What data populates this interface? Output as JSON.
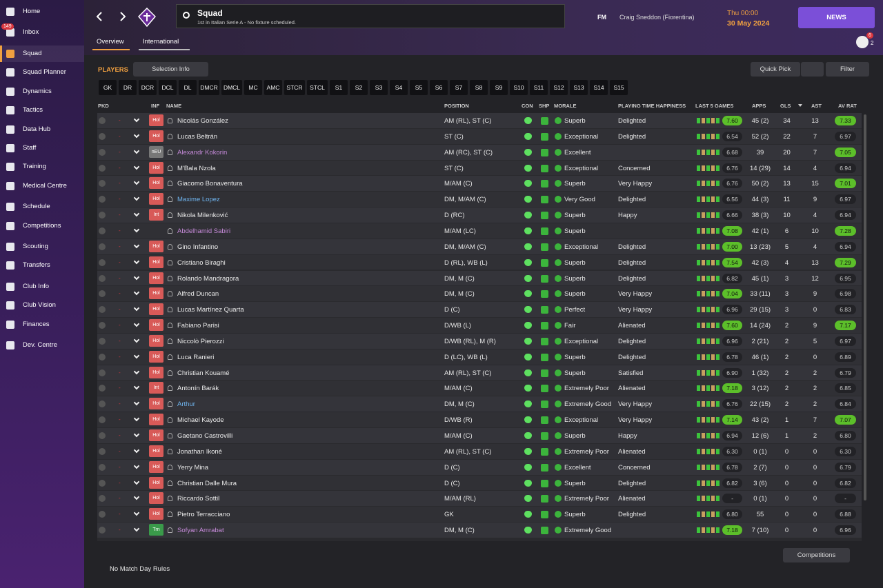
{
  "sidebar": {
    "items": [
      "Home",
      "Inbox",
      "Squad",
      "Squad Planner",
      "Dynamics",
      "Tactics",
      "Data Hub",
      "Staff",
      "Training",
      "Medical Centre",
      "Schedule",
      "Competitions",
      "Scouting",
      "Transfers",
      "Club Info",
      "Club Vision",
      "Finances",
      "Dev. Centre"
    ],
    "inbox_badge": "149"
  },
  "header": {
    "title": "Squad",
    "subtitle": "1st in Italian Serie A - No fixture scheduled.",
    "brand": "FM",
    "manager": "Craig Sneddon (Fiorentina)",
    "time": "Thu 00:00",
    "date": "30 May 2024",
    "news": "NEWS",
    "badge_a": "2",
    "badge_b": "6"
  },
  "tabs": [
    "Overview",
    "International"
  ],
  "toolbar": {
    "label": "PLAYERS",
    "selection": "Selection Info",
    "quick_pick": "Quick Pick",
    "filter": "Filter"
  },
  "positions": [
    "GK",
    "DR",
    "DCR",
    "DCL",
    "DL",
    "DMCR",
    "DMCL",
    "MC",
    "AMC",
    "STCR",
    "STCL",
    "S1",
    "S2",
    "S3",
    "S4",
    "S5",
    "S6",
    "S7",
    "S8",
    "S9",
    "S10",
    "S11",
    "S12",
    "S13",
    "S14",
    "S15"
  ],
  "table": {
    "columns": [
      "PKD",
      "INF",
      "NAME",
      "POSITION",
      "CON",
      "SHP",
      "MORALE",
      "PLAYING TIME HAPPINESS",
      "LAST 5 GAMES",
      "APPS",
      "GLS",
      "AST",
      "AV RAT"
    ],
    "rows": [
      {
        "pkd": "-",
        "inf": "Hol",
        "name": "Nicolás González",
        "position": "AM (RL), ST (C)",
        "morale": "Superb",
        "happiness": "Delighted",
        "last5": "7.60",
        "apps": "45 (2)",
        "gls": 34,
        "ast": 13,
        "av_rat": "7.33"
      },
      {
        "pkd": "-",
        "inf": "Hol",
        "name": "Lucas Beltrán",
        "position": "ST (C)",
        "morale": "Exceptional",
        "happiness": "Delighted",
        "last5": "6.54",
        "apps": "52 (2)",
        "gls": 22,
        "ast": 7,
        "av_rat": "6.97"
      },
      {
        "pkd": "-",
        "inf": "nEU",
        "name": "Alexandr Kokorin",
        "color": "#c58ad8",
        "position": "AM (RC), ST (C)",
        "morale": "Excellent",
        "last5": "6.68",
        "apps": "39",
        "gls": 20,
        "ast": 7,
        "av_rat": "7.05"
      },
      {
        "pkd": "-",
        "inf": "Hol",
        "name": "M'Bala Nzola",
        "position": "ST (C)",
        "morale": "Exceptional",
        "happiness": "Concerned",
        "last5": "6.76",
        "apps": "14 (29)",
        "gls": 14,
        "ast": 4,
        "av_rat": "6.94"
      },
      {
        "pkd": "-",
        "inf": "Hol",
        "name": "Giacomo Bonaventura",
        "position": "M/AM (C)",
        "morale": "Superb",
        "happiness": "Very Happy",
        "last5": "6.76",
        "apps": "50 (2)",
        "gls": 13,
        "ast": 15,
        "av_rat": "7.01"
      },
      {
        "pkd": "-",
        "inf": "Hol",
        "name": "Maxime Lopez",
        "color": "#6fb4ee",
        "position": "DM, M/AM (C)",
        "morale": "Very Good",
        "happiness": "Delighted",
        "last5": "6.56",
        "apps": "44 (3)",
        "gls": 11,
        "ast": 9,
        "av_rat": "6.97"
      },
      {
        "pkd": "-",
        "inf": "Int",
        "name": "Nikola Milenković",
        "position": "D (RC)",
        "morale": "Superb",
        "happiness": "Happy",
        "last5": "6.66",
        "apps": "38 (3)",
        "gls": 10,
        "ast": 4,
        "av_rat": "6.94"
      },
      {
        "pkd": "-",
        "name": "Abdelhamid Sabiri",
        "color": "#c58ad8",
        "position": "M/AM (LC)",
        "morale": "Superb",
        "last5": "7.08",
        "apps": "42 (1)",
        "gls": 6,
        "ast": 10,
        "av_rat": "7.28"
      },
      {
        "pkd": "-",
        "inf": "Hol",
        "name": "Gino Infantino",
        "position": "DM, M/AM (C)",
        "morale": "Exceptional",
        "happiness": "Delighted",
        "last5": "7.00",
        "apps": "13 (23)",
        "gls": 5,
        "ast": 4,
        "av_rat": "6.94"
      },
      {
        "pkd": "-",
        "inf": "Hol",
        "name": "Cristiano Biraghi",
        "position": "D (RL), WB (L)",
        "morale": "Superb",
        "happiness": "Delighted",
        "last5": "7.54",
        "apps": "42 (3)",
        "gls": 4,
        "ast": 13,
        "av_rat": "7.29"
      },
      {
        "pkd": "-",
        "inf": "Hol",
        "name": "Rolando Mandragora",
        "position": "DM, M (C)",
        "morale": "Superb",
        "happiness": "Delighted",
        "last5": "6.82",
        "apps": "45 (1)",
        "gls": 3,
        "ast": 12,
        "av_rat": "6.95"
      },
      {
        "pkd": "-",
        "inf": "Hol",
        "name": "Alfred Duncan",
        "position": "DM, M (C)",
        "morale": "Superb",
        "happiness": "Very Happy",
        "last5": "7.04",
        "apps": "33 (11)",
        "gls": 3,
        "ast": 9,
        "av_rat": "6.98"
      },
      {
        "pkd": "-",
        "inf": "Hol",
        "name": "Lucas Martínez Quarta",
        "position": "D (C)",
        "morale": "Perfect",
        "happiness": "Very Happy",
        "last5": "6.96",
        "apps": "29 (15)",
        "gls": 3,
        "ast": 0,
        "av_rat": "6.83"
      },
      {
        "pkd": "-",
        "inf": "Hol",
        "name": "Fabiano Parisi",
        "position": "D/WB (L)",
        "morale": "Fair",
        "happiness": "Alienated",
        "last5": "7.60",
        "apps": "14 (24)",
        "gls": 2,
        "ast": 9,
        "av_rat": "7.17"
      },
      {
        "pkd": "-",
        "inf": "Hol",
        "name": "Niccolò Pierozzi",
        "position": "D/WB (RL), M (R)",
        "morale": "Exceptional",
        "happiness": "Delighted",
        "last5": "6.96",
        "apps": "2 (21)",
        "gls": 2,
        "ast": 5,
        "av_rat": "6.97"
      },
      {
        "pkd": "-",
        "inf": "Hol",
        "name": "Luca Ranieri",
        "position": "D (LC), WB (L)",
        "morale": "Superb",
        "happiness": "Delighted",
        "last5": "6.78",
        "apps": "46 (1)",
        "gls": 2,
        "ast": 0,
        "av_rat": "6.89"
      },
      {
        "pkd": "-",
        "inf": "Hol",
        "name": "Christian Kouamé",
        "position": "AM (RL), ST (C)",
        "morale": "Superb",
        "happiness": "Satisfied",
        "last5": "6.90",
        "apps": "1 (32)",
        "gls": 2,
        "ast": 2,
        "av_rat": "6.79"
      },
      {
        "pkd": "-",
        "inf": "Int",
        "name": "Antonín Barák",
        "position": "M/AM (C)",
        "morale": "Extremely Poor",
        "happiness": "Alienated",
        "last5": "7.18",
        "apps": "3 (12)",
        "gls": 2,
        "ast": 2,
        "av_rat": "6.85"
      },
      {
        "pkd": "-",
        "inf": "Hol",
        "name": "Arthur",
        "color": "#6fb4ee",
        "position": "DM, M (C)",
        "morale": "Extremely Good",
        "happiness": "Very Happy",
        "last5": "6.76",
        "apps": "22 (15)",
        "gls": 2,
        "ast": 2,
        "av_rat": "6.84"
      },
      {
        "pkd": "-",
        "inf": "Hol",
        "name": "Michael Kayode",
        "position": "D/WB (R)",
        "morale": "Exceptional",
        "happiness": "Very Happy",
        "last5": "7.14",
        "apps": "43 (2)",
        "gls": 1,
        "ast": 7,
        "av_rat": "7.07"
      },
      {
        "pkd": "-",
        "inf": "Hol",
        "name": "Gaetano Castrovilli",
        "position": "M/AM (C)",
        "morale": "Superb",
        "happiness": "Happy",
        "last5": "6.94",
        "apps": "12 (6)",
        "gls": 1,
        "ast": 2,
        "av_rat": "6.80"
      },
      {
        "pkd": "-",
        "inf": "Hol",
        "name": "Jonathan Ikoné",
        "position": "AM (RL), ST (C)",
        "morale": "Extremely Poor",
        "happiness": "Alienated",
        "last5": "6.30",
        "apps": "0 (1)",
        "gls": 0,
        "ast": 0,
        "av_rat": "6.30"
      },
      {
        "pkd": "-",
        "inf": "Hol",
        "name": "Yerry Mina",
        "position": "D (C)",
        "morale": "Excellent",
        "happiness": "Concerned",
        "last5": "6.78",
        "apps": "2 (7)",
        "gls": 0,
        "ast": 0,
        "av_rat": "6.79"
      },
      {
        "pkd": "-",
        "inf": "Hol",
        "name": "Christian Dalle Mura",
        "position": "D (C)",
        "morale": "Superb",
        "happiness": "Delighted",
        "last5": "6.82",
        "apps": "3 (6)",
        "gls": 0,
        "ast": 0,
        "av_rat": "6.82"
      },
      {
        "pkd": "-",
        "inf": "Hol",
        "name": "Riccardo Sottil",
        "position": "M/AM (RL)",
        "morale": "Extremely Poor",
        "happiness": "Alienated",
        "last5": "-",
        "apps": "0 (1)",
        "gls": 0,
        "ast": 0,
        "av_rat": "-"
      },
      {
        "pkd": "-",
        "inf": "Hol",
        "name": "Pietro Terracciano",
        "position": "GK",
        "morale": "Superb",
        "happiness": "Delighted",
        "last5": "6.80",
        "apps": "55",
        "gls": 0,
        "ast": 0,
        "av_rat": "6.88"
      },
      {
        "pkd": "-",
        "inf": "Trn",
        "name": "Sofyan Amrabat",
        "color": "#c58ad8",
        "position": "DM, M (C)",
        "morale": "Extremely Good",
        "last5": "7.18",
        "apps": "7 (10)",
        "gls": 0,
        "ast": 0,
        "av_rat": "6.96"
      }
    ]
  },
  "footer": {
    "competitions": "Competitions",
    "rules": "No Match Day Rules"
  }
}
